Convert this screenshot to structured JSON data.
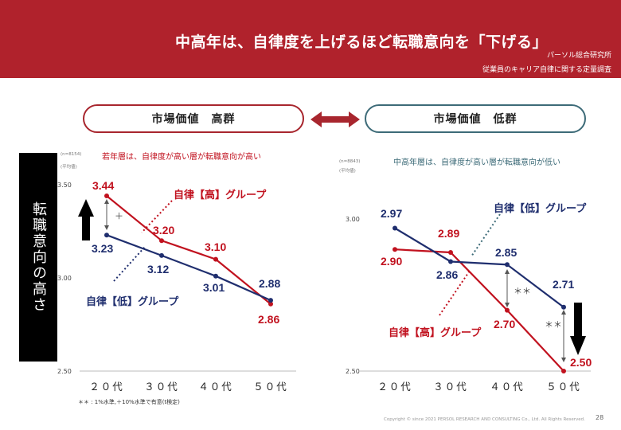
{
  "header": {
    "title": "中高年は、自律度を上げるほど転職意向を「下げる」",
    "source": "パーソル総合研究所",
    "subtitle": "従業員のキャリア自律に関する定量調査",
    "bg_color": "#b0222c"
  },
  "groups": {
    "high_label": "市場価値　高群",
    "low_label": "市場価値　低群"
  },
  "y_axis_label": "転職意向の高さ",
  "footnote": "＊＊ : 1%水準,＋10%水準で有意(t検定)",
  "copyright": "Copyright © since 2021 PERSOL RESEARCH AND CONSULTING Co., Ltd. All Rights Reserved.",
  "page_number": "28",
  "colors": {
    "red": "#c1121f",
    "blue": "#1f2e6e",
    "teal": "#3d6b78"
  },
  "chart_data": [
    {
      "type": "line",
      "title": "若年層は、自律度が高い層が転職意向が高い",
      "n_note": "(n=8154)",
      "unit_note": "(平均値)",
      "categories": [
        "２０代",
        "３０代",
        "４０代",
        "５０代"
      ],
      "ylim": [
        2.5,
        3.5
      ],
      "yticks": [
        "3.50",
        "3.00",
        "2.50"
      ],
      "series": [
        {
          "name": "自律【高】グループ",
          "color": "#c1121f",
          "values": [
            3.44,
            3.2,
            3.1,
            2.86
          ]
        },
        {
          "name": "自律【低】グループ",
          "color": "#1f2e6e",
          "values": [
            3.23,
            3.12,
            3.01,
            2.88
          ]
        }
      ],
      "value_labels": [
        [
          "3.44",
          "3.20",
          "3.10",
          "2.86"
        ],
        [
          "3.23",
          "3.12",
          "3.01",
          "2.88"
        ]
      ],
      "significance": "＋"
    },
    {
      "type": "line",
      "title": "中高年層は、自律度が高い層が転職意向が低い",
      "n_note": "(n=8843)",
      "unit_note": "(平均値)",
      "categories": [
        "２０代",
        "３０代",
        "４０代",
        "５０代"
      ],
      "ylim": [
        2.5,
        3.0
      ],
      "yticks": [
        "3.00",
        "2.50"
      ],
      "series": [
        {
          "name": "自律【高】グループ",
          "color": "#c1121f",
          "values": [
            2.9,
            2.89,
            2.7,
            2.5
          ]
        },
        {
          "name": "自律【低】グループ",
          "color": "#1f2e6e",
          "values": [
            2.97,
            2.86,
            2.85,
            2.71
          ]
        }
      ],
      "value_labels": [
        [
          "2.90",
          "2.89",
          "2.70",
          "2.50"
        ],
        [
          "2.97",
          "2.86",
          "2.85",
          "2.71"
        ]
      ],
      "significance": "＊＊"
    }
  ]
}
